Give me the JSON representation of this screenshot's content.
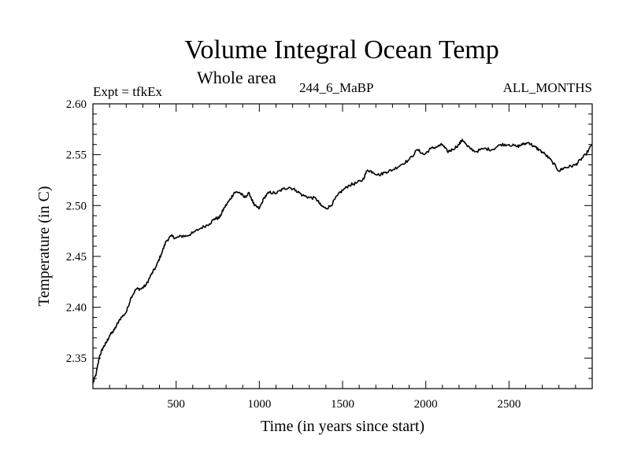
{
  "title": "Volume Integral Ocean Temp",
  "subtitle": "Whole area",
  "expt_label": "Expt = tfkEx",
  "run_label": "244_6_MaBP",
  "months_label": "ALL_MONTHS",
  "chart_data": {
    "type": "line",
    "title": "Volume Integral Ocean Temp",
    "subtitle": "Whole area",
    "xlabel": "Time (in years since start)",
    "ylabel": "Temperature (in C)",
    "xlim": [
      0,
      3000
    ],
    "ylim": [
      2.32,
      2.6
    ],
    "xticks": [
      500,
      1000,
      1500,
      2000,
      2500
    ],
    "yticks": [
      2.35,
      2.4,
      2.45,
      2.5,
      2.55,
      2.6
    ],
    "xtick_labels": [
      "500",
      "1000",
      "1500",
      "2000",
      "2500"
    ],
    "ytick_labels": [
      "2.35",
      "2.40",
      "2.45",
      "2.50",
      "2.55",
      "2.60"
    ],
    "grid": false,
    "series": [
      {
        "color": "#000000",
        "x": [
          0,
          20,
          40,
          60,
          80,
          100,
          130,
          160,
          200,
          230,
          260,
          290,
          320,
          350,
          380,
          410,
          440,
          470,
          500,
          530,
          560,
          600,
          650,
          700,
          730,
          760,
          790,
          820,
          850,
          880,
          910,
          940,
          970,
          1000,
          1030,
          1060,
          1100,
          1140,
          1180,
          1220,
          1260,
          1300,
          1340,
          1370,
          1400,
          1430,
          1470,
          1500,
          1540,
          1580,
          1620,
          1650,
          1680,
          1720,
          1760,
          1800,
          1850,
          1900,
          1950,
          1990,
          2030,
          2070,
          2100,
          2130,
          2160,
          2200,
          2220,
          2250,
          2300,
          2350,
          2400,
          2450,
          2500,
          2550,
          2580,
          2620,
          2650,
          2680,
          2720,
          2760,
          2800,
          2830,
          2860,
          2900,
          2930,
          2960,
          3000
        ],
        "y": [
          2.325,
          2.335,
          2.352,
          2.36,
          2.365,
          2.372,
          2.378,
          2.388,
          2.395,
          2.41,
          2.418,
          2.418,
          2.422,
          2.432,
          2.44,
          2.452,
          2.465,
          2.47,
          2.468,
          2.47,
          2.47,
          2.473,
          2.478,
          2.482,
          2.487,
          2.488,
          2.498,
          2.505,
          2.513,
          2.513,
          2.508,
          2.512,
          2.5,
          2.497,
          2.508,
          2.513,
          2.512,
          2.516,
          2.518,
          2.515,
          2.51,
          2.508,
          2.507,
          2.5,
          2.497,
          2.5,
          2.51,
          2.515,
          2.52,
          2.522,
          2.525,
          2.535,
          2.533,
          2.53,
          2.533,
          2.535,
          2.54,
          2.545,
          2.555,
          2.55,
          2.556,
          2.558,
          2.56,
          2.553,
          2.555,
          2.56,
          2.565,
          2.558,
          2.553,
          2.556,
          2.555,
          2.56,
          2.56,
          2.558,
          2.56,
          2.562,
          2.558,
          2.555,
          2.55,
          2.543,
          2.534,
          2.537,
          2.538,
          2.54,
          2.545,
          2.55,
          2.56
        ]
      }
    ]
  }
}
